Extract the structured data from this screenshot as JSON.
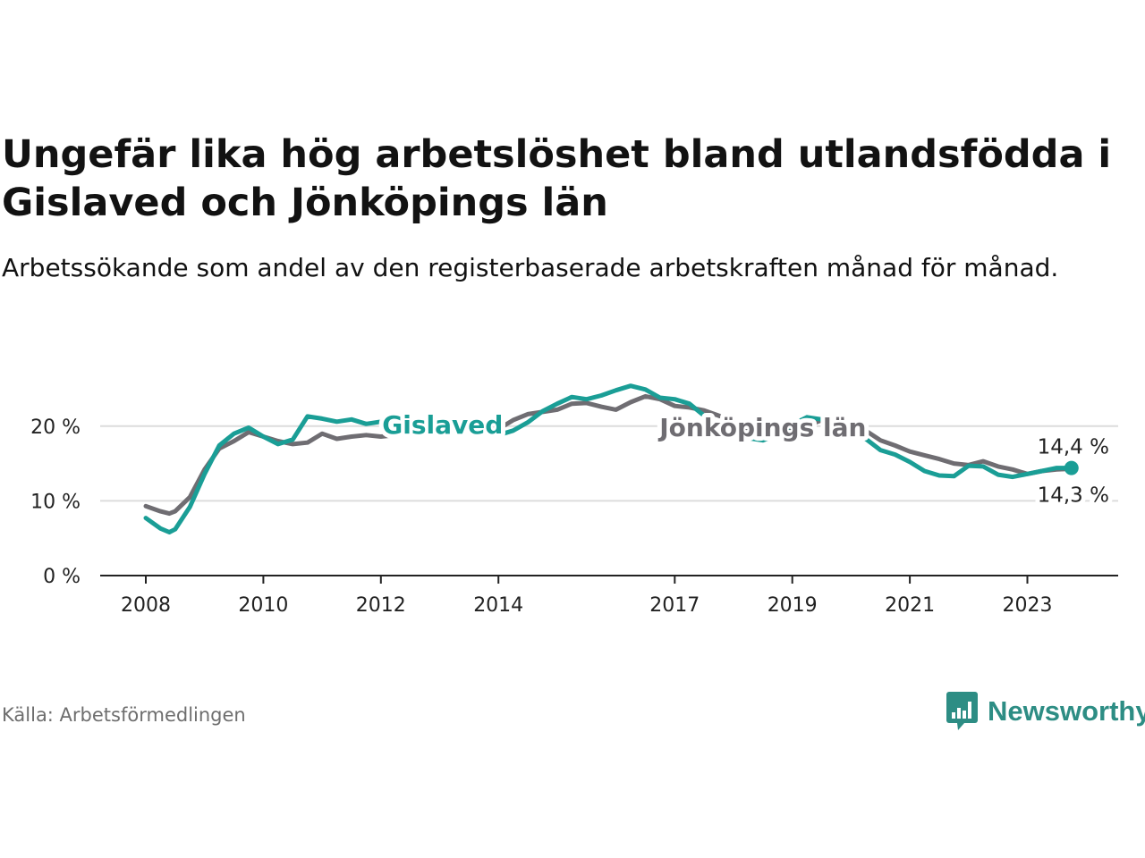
{
  "title": "Ungefär lika hög arbetslöshet bland utlandsfödda i Gislaved och Jönköpings län",
  "subtitle": "Arbetssökande som andel av den registerbaserade arbetskraften månad för månad.",
  "source": "Källa: Arbetsförmedlingen",
  "brand": {
    "name": "Newsworthy",
    "icon": "newsworthy-logo-icon",
    "color": "#2d8d84"
  },
  "chart_data": {
    "type": "line",
    "title": "Ungefär lika hög arbetslöshet bland utlandsfödda i Gislaved och Jönköpings län",
    "xlabel": "",
    "ylabel": "",
    "xlim": [
      2008.0,
      2025.3
    ],
    "ylim": [
      0,
      25
    ],
    "y_ticks": [
      0,
      10,
      20
    ],
    "y_tick_labels": [
      "0 %",
      "10 %",
      "20 %"
    ],
    "x_ticks": [
      2008,
      2010,
      2012,
      2014,
      2017,
      2019,
      2021,
      2023
    ],
    "x_tick_labels": [
      "2008",
      "2010",
      "2012",
      "2014",
      "2017",
      "2019",
      "2021",
      "2023"
    ],
    "grid": true,
    "series": [
      {
        "name": "Jönköpings län",
        "label": "Jönköpings län",
        "color": "#6f6d72",
        "end_label": "14,3 %",
        "x": [
          2008.0,
          2008.25,
          2008.4,
          2008.5,
          2008.75,
          2009.0,
          2009.25,
          2009.5,
          2009.75,
          2010.0,
          2010.25,
          2010.5,
          2010.75,
          2011.0,
          2011.25,
          2011.5,
          2011.75,
          2012.0,
          2012.25,
          2012.5,
          2012.75,
          2013.0,
          2013.25,
          2013.5,
          2013.75,
          2014.0,
          2014.25,
          2014.5,
          2014.75,
          2015.0,
          2015.25,
          2015.5,
          2015.75,
          2016.0,
          2016.25,
          2016.5,
          2016.75,
          2017.0,
          2017.25,
          2017.5,
          2017.75,
          2018.0,
          2018.25,
          2018.5,
          2018.75,
          2019.0,
          2019.25,
          2019.5,
          2019.75,
          2020.0,
          2020.25,
          2020.5,
          2020.75,
          2021.0,
          2021.25,
          2021.5,
          2021.75,
          2022.0,
          2022.25,
          2022.5,
          2022.75,
          2023.0,
          2023.25,
          2023.5,
          2023.75
        ],
        "values": [
          9.3,
          8.6,
          8.3,
          8.6,
          10.5,
          14.2,
          17.0,
          18.0,
          19.2,
          18.6,
          18.0,
          17.6,
          17.8,
          19.0,
          18.3,
          18.6,
          18.8,
          18.6,
          18.8,
          19.0,
          19.0,
          19.1,
          19.1,
          19.3,
          19.4,
          19.6,
          20.8,
          21.6,
          21.9,
          22.2,
          23.0,
          23.1,
          22.6,
          22.2,
          23.2,
          24.0,
          23.6,
          22.7,
          22.5,
          22.1,
          21.4,
          20.5,
          19.5,
          19.0,
          19.0,
          19.4,
          20.1,
          20.8,
          20.6,
          20.1,
          19.4,
          18.1,
          17.4,
          16.6,
          16.1,
          15.6,
          15.0,
          14.8,
          15.3,
          14.6,
          14.2,
          13.6,
          14.0,
          14.2,
          14.3
        ]
      },
      {
        "name": "Gislaved",
        "label": "Gislaved",
        "color": "#1a9e96",
        "end_label": "14,4 %",
        "x": [
          2008.0,
          2008.25,
          2008.4,
          2008.5,
          2008.75,
          2009.0,
          2009.25,
          2009.5,
          2009.75,
          2010.0,
          2010.25,
          2010.5,
          2010.75,
          2011.0,
          2011.25,
          2011.5,
          2011.75,
          2012.0,
          2012.25,
          2012.5,
          2012.75,
          2013.0,
          2013.25,
          2013.5,
          2013.75,
          2014.0,
          2014.25,
          2014.5,
          2014.75,
          2015.0,
          2015.25,
          2015.5,
          2015.75,
          2016.0,
          2016.25,
          2016.5,
          2016.75,
          2017.0,
          2017.25,
          2017.5,
          2017.75,
          2018.0,
          2018.25,
          2018.5,
          2018.75,
          2019.0,
          2019.25,
          2019.5,
          2019.75,
          2020.0,
          2020.25,
          2020.5,
          2020.75,
          2021.0,
          2021.25,
          2021.5,
          2021.75,
          2022.0,
          2022.25,
          2022.5,
          2022.75,
          2023.0,
          2023.25,
          2023.5,
          2023.75
        ],
        "values": [
          7.7,
          6.3,
          5.8,
          6.2,
          9.2,
          13.6,
          17.4,
          19.0,
          19.8,
          18.6,
          17.6,
          18.2,
          21.3,
          21.0,
          20.6,
          20.9,
          20.3,
          20.6,
          20.1,
          19.8,
          19.6,
          19.7,
          19.5,
          19.4,
          19.6,
          18.8,
          19.4,
          20.5,
          22.0,
          23.0,
          23.9,
          23.6,
          24.1,
          24.8,
          25.4,
          24.9,
          23.8,
          23.6,
          23.0,
          21.4,
          20.5,
          19.8,
          18.4,
          18.1,
          18.9,
          20.2,
          21.2,
          20.9,
          20.2,
          19.5,
          18.3,
          16.8,
          16.2,
          15.2,
          14.0,
          13.4,
          13.3,
          14.7,
          14.6,
          13.5,
          13.2,
          13.6,
          14.0,
          14.4,
          14.4
        ]
      }
    ]
  }
}
